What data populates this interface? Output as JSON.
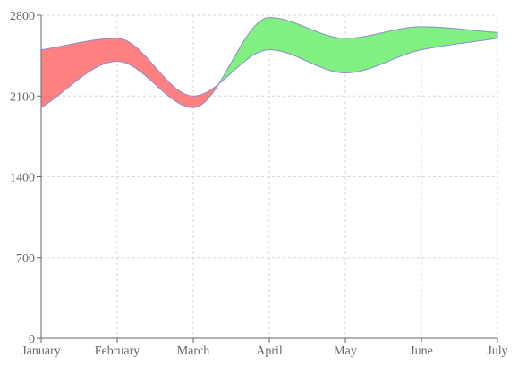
{
  "chart_data": {
    "type": "area",
    "categories": [
      "January",
      "February",
      "March",
      "April",
      "May",
      "June",
      "July"
    ],
    "series": [
      {
        "values": [
          2500,
          2600,
          2100,
          2500,
          2300,
          2500,
          2600
        ]
      },
      {
        "values": [
          2000,
          2400,
          2000,
          2780,
          2600,
          2700,
          2650
        ]
      }
    ],
    "ylim": [
      0,
      2800
    ],
    "yticks": [
      0,
      700,
      1400,
      2100,
      2800
    ],
    "grid": true,
    "colors": {
      "above": "#80f080",
      "below": "#ff8080",
      "outline": "#8a8ad0"
    }
  }
}
